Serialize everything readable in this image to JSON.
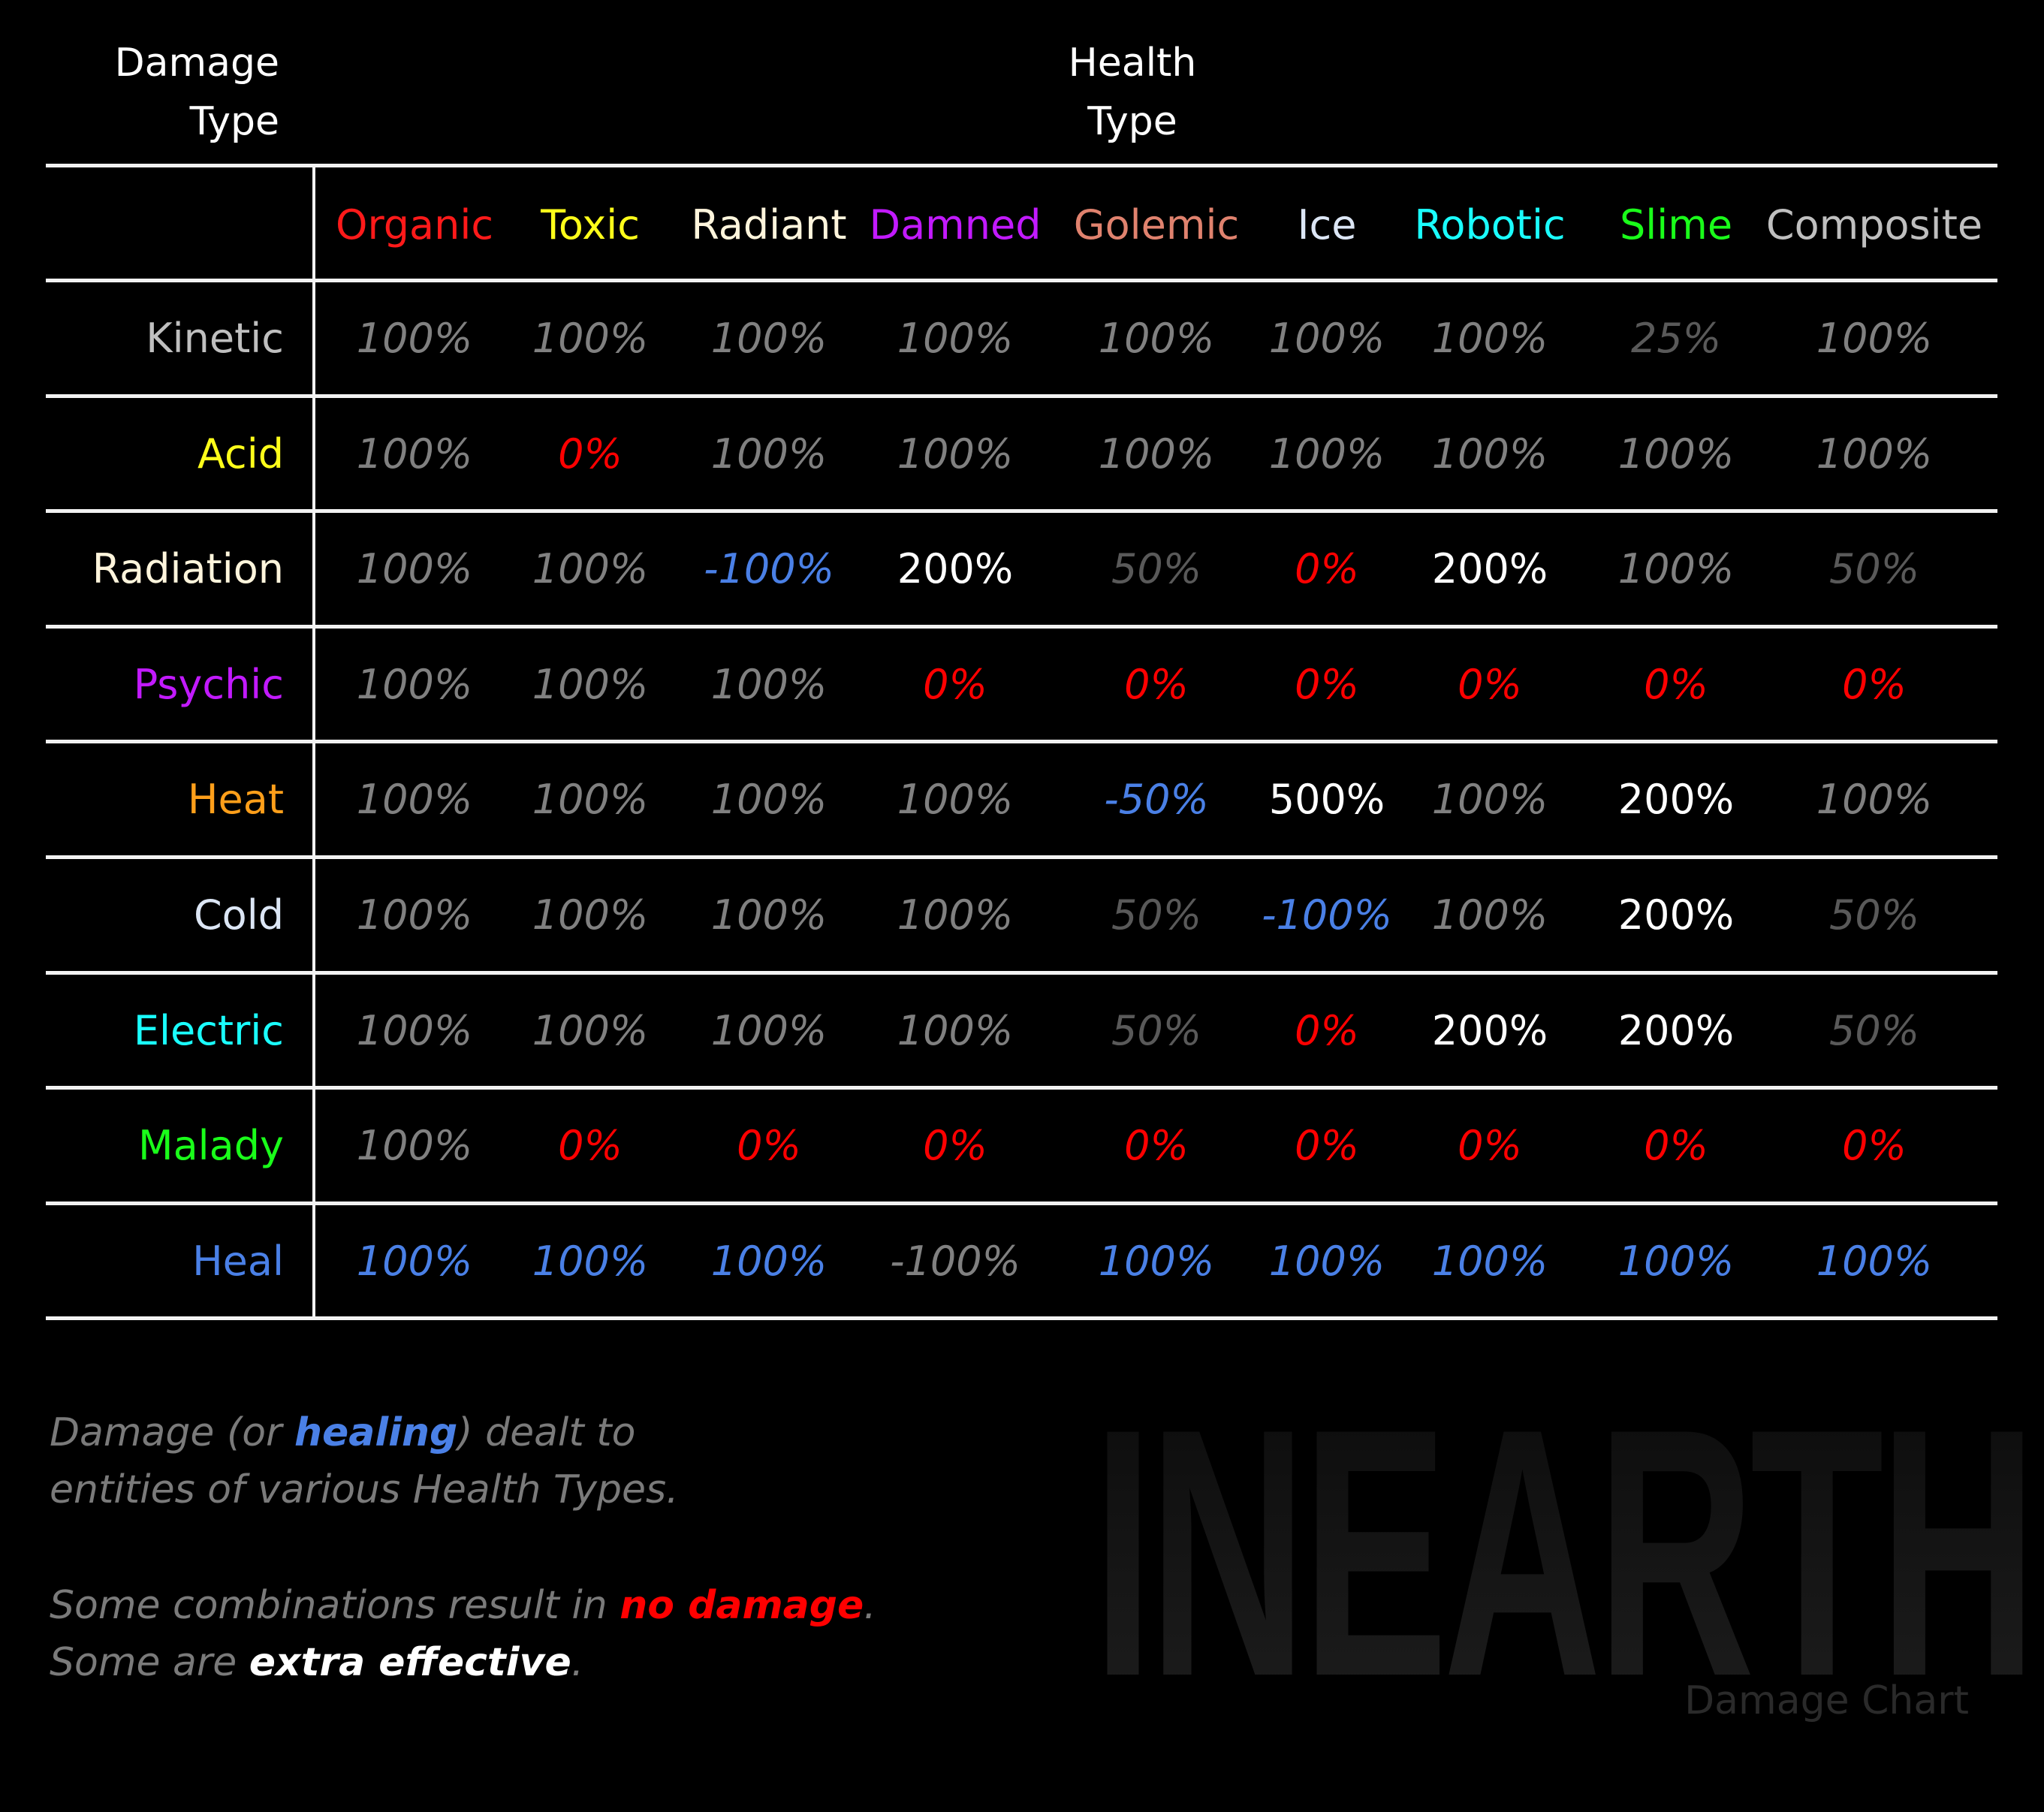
{
  "header": {
    "damage_type_line1": "Damage",
    "damage_type_line2": "Type",
    "health_type_line1": "Health",
    "health_type_line2": "Type"
  },
  "colors": {
    "normal": "#808080",
    "reduced": "#595959",
    "immune": "#ff0000",
    "extra": "#ffffff",
    "heal": "#4a80e6",
    "line": "#f2f2f2",
    "background": "#000000"
  },
  "chart_data": {
    "type": "table",
    "title": "INEARTH Damage Chart",
    "xlabel": "Health Type",
    "ylabel": "Damage Type",
    "columns": [
      {
        "name": "Organic",
        "color": "#ff1a1a"
      },
      {
        "name": "Toxic",
        "color": "#ffff1a"
      },
      {
        "name": "Radiant",
        "color": "#fff5dc"
      },
      {
        "name": "Damned",
        "color": "#c21aff"
      },
      {
        "name": "Golemic",
        "color": "#e0826e"
      },
      {
        "name": "Ice",
        "color": "#dce6f5"
      },
      {
        "name": "Robotic",
        "color": "#1affff"
      },
      {
        "name": "Slime",
        "color": "#1aff1a"
      },
      {
        "name": "Composite",
        "color": "#bfbfbf"
      }
    ],
    "rows": [
      {
        "name": "Kinetic",
        "color": "#bfbfbf",
        "values": [
          "100%",
          "100%",
          "100%",
          "100%",
          "100%",
          "100%",
          "100%",
          "25%",
          "100%"
        ],
        "styles": [
          "normal",
          "normal",
          "normal",
          "normal",
          "normal",
          "normal",
          "normal",
          "reduced",
          "normal"
        ]
      },
      {
        "name": "Acid",
        "color": "#ffff1a",
        "values": [
          "100%",
          "0%",
          "100%",
          "100%",
          "100%",
          "100%",
          "100%",
          "100%",
          "100%"
        ],
        "styles": [
          "normal",
          "immune",
          "normal",
          "normal",
          "normal",
          "normal",
          "normal",
          "normal",
          "normal"
        ]
      },
      {
        "name": "Radiation",
        "color": "#fff5dc",
        "values": [
          "100%",
          "100%",
          "-100%",
          "200%",
          "50%",
          "0%",
          "200%",
          "100%",
          "50%"
        ],
        "styles": [
          "normal",
          "normal",
          "heal",
          "extra",
          "reduced",
          "immune",
          "extra",
          "normal",
          "reduced"
        ]
      },
      {
        "name": "Psychic",
        "color": "#c21aff",
        "values": [
          "100%",
          "100%",
          "100%",
          "0%",
          "0%",
          "0%",
          "0%",
          "0%",
          "0%"
        ],
        "styles": [
          "normal",
          "normal",
          "normal",
          "immune",
          "immune",
          "immune",
          "immune",
          "immune",
          "immune"
        ]
      },
      {
        "name": "Heat",
        "color": "#ff9f1a",
        "values": [
          "100%",
          "100%",
          "100%",
          "100%",
          "-50%",
          "500%",
          "100%",
          "200%",
          "100%"
        ],
        "styles": [
          "normal",
          "normal",
          "normal",
          "normal",
          "heal",
          "extra",
          "normal",
          "extra",
          "normal"
        ]
      },
      {
        "name": "Cold",
        "color": "#dce6f5",
        "values": [
          "100%",
          "100%",
          "100%",
          "100%",
          "50%",
          "-100%",
          "100%",
          "200%",
          "50%"
        ],
        "styles": [
          "normal",
          "normal",
          "normal",
          "normal",
          "reduced",
          "heal",
          "normal",
          "extra",
          "reduced"
        ]
      },
      {
        "name": "Electric",
        "color": "#1affff",
        "values": [
          "100%",
          "100%",
          "100%",
          "100%",
          "50%",
          "0%",
          "200%",
          "200%",
          "50%"
        ],
        "styles": [
          "normal",
          "normal",
          "normal",
          "normal",
          "reduced",
          "immune",
          "extra",
          "extra",
          "reduced"
        ]
      },
      {
        "name": "Malady",
        "color": "#1aff1a",
        "values": [
          "100%",
          "0%",
          "0%",
          "0%",
          "0%",
          "0%",
          "0%",
          "0%",
          "0%"
        ],
        "styles": [
          "normal",
          "immune",
          "immune",
          "immune",
          "immune",
          "immune",
          "immune",
          "immune",
          "immune"
        ]
      },
      {
        "name": "Heal",
        "color": "#4a80e6",
        "values": [
          "100%",
          "100%",
          "100%",
          "-100%",
          "100%",
          "100%",
          "100%",
          "100%",
          "100%"
        ],
        "styles": [
          "heal",
          "heal",
          "heal",
          "normal",
          "heal",
          "heal",
          "heal",
          "heal",
          "heal"
        ]
      }
    ]
  },
  "notes": {
    "line1_pre": "Damage (or ",
    "line1_em": "healing",
    "line1_post": ") dealt to",
    "line2": "entities of various Health Types.",
    "line3_pre": "Some combinations result in ",
    "line3_em": "no damage",
    "line3_post": ".",
    "line4_pre": "Some are ",
    "line4_em": "extra effective",
    "line4_post": "."
  },
  "branding": {
    "logo": "INEARTH",
    "subtitle": "Damage Chart"
  }
}
